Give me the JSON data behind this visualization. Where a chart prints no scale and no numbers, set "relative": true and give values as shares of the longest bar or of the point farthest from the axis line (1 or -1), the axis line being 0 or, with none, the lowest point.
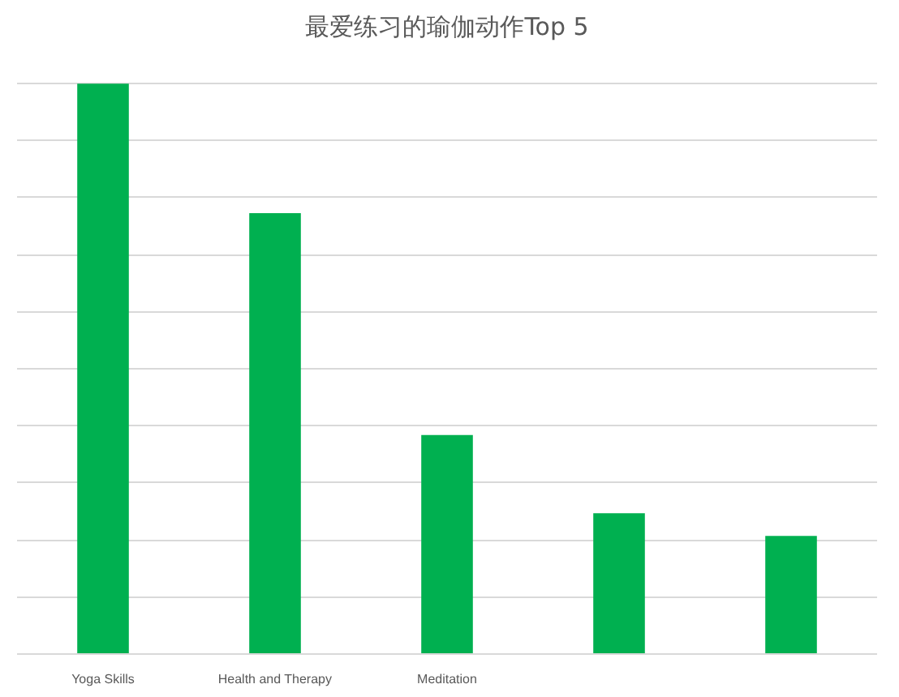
{
  "chart_data": {
    "type": "bar",
    "title": "最爱练习的瑜伽动作Top 5",
    "relative": true,
    "grid": "y",
    "categories": [
      "Yoga Skills",
      "Health and Therapy",
      "Meditation",
      null,
      null
    ],
    "values": [
      1,
      0.773,
      0.384,
      0.247,
      0.207
    ],
    "color": "#00b050"
  }
}
